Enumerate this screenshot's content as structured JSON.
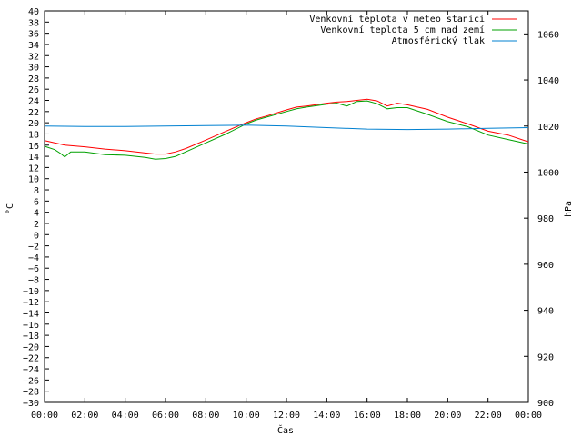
{
  "chart_data": {
    "type": "line",
    "xlabel": "Čas",
    "ylabel": "°C",
    "y2label": "hPa",
    "x_ticks": [
      "00:00",
      "02:00",
      "04:00",
      "06:00",
      "08:00",
      "10:00",
      "12:00",
      "14:00",
      "16:00",
      "18:00",
      "20:00",
      "22:00",
      "00:00"
    ],
    "x_range_hours": [
      0,
      24
    ],
    "ylim": [
      -30,
      40
    ],
    "y_ticks": [
      40,
      38,
      36,
      34,
      32,
      30,
      28,
      26,
      24,
      22,
      20,
      18,
      16,
      14,
      12,
      10,
      8,
      6,
      4,
      2,
      0,
      -2,
      -4,
      -6,
      -8,
      -10,
      -12,
      -14,
      -16,
      -18,
      -20,
      -22,
      -24,
      -26,
      -28,
      -30
    ],
    "y2lim": [
      900,
      1070
    ],
    "y2_ticks": [
      1060,
      1040,
      1020,
      1000,
      980,
      960,
      940,
      920,
      900
    ],
    "grid": false,
    "legend_position": "top-right",
    "series": [
      {
        "name": "Venkovní teplota v meteo stanici",
        "axis": "left",
        "color": "#ff0000",
        "x": [
          0,
          0.5,
          1,
          2,
          3,
          4,
          5,
          5.5,
          6,
          6.5,
          7,
          8,
          9,
          10,
          10.5,
          11,
          12,
          12.5,
          13,
          14,
          14.5,
          15,
          15.5,
          16,
          16.5,
          17,
          17.5,
          18,
          19,
          20,
          21,
          22,
          23,
          24
        ],
        "values": [
          16.8,
          16.4,
          16.0,
          15.7,
          15.3,
          15.0,
          14.6,
          14.4,
          14.4,
          14.8,
          15.4,
          16.9,
          18.5,
          20.0,
          20.7,
          21.2,
          22.3,
          22.8,
          23.0,
          23.5,
          23.7,
          23.8,
          24.0,
          24.2,
          23.9,
          23.0,
          23.5,
          23.2,
          22.4,
          21.0,
          19.8,
          18.5,
          17.8,
          16.6
        ]
      },
      {
        "name": "Venkovní teplota 5 cm nad zemí",
        "axis": "left",
        "color": "#00a000",
        "x": [
          0,
          0.5,
          0.8,
          1,
          1.3,
          2,
          3,
          4,
          5,
          5.5,
          6,
          6.5,
          7,
          8,
          9,
          10,
          10.5,
          11,
          12,
          12.5,
          13,
          14,
          14.5,
          15,
          15.5,
          16,
          16.5,
          17,
          17.5,
          18,
          19,
          20,
          21,
          22,
          23,
          24
        ],
        "values": [
          15.8,
          15.2,
          14.5,
          13.9,
          14.8,
          14.8,
          14.3,
          14.2,
          13.8,
          13.5,
          13.6,
          14.0,
          14.8,
          16.4,
          18.0,
          19.8,
          20.5,
          21.0,
          22.0,
          22.5,
          22.8,
          23.3,
          23.5,
          23.0,
          23.8,
          23.9,
          23.4,
          22.5,
          22.7,
          22.7,
          21.5,
          20.2,
          19.3,
          17.8,
          17.0,
          16.2
        ]
      },
      {
        "name": "Atmosférický tlak",
        "axis": "right",
        "color": "#0080d0",
        "x": [
          0,
          2,
          4,
          6,
          8,
          10,
          11,
          12,
          14,
          16,
          18,
          20,
          22,
          24
        ],
        "values": [
          1020,
          1019.8,
          1019.8,
          1020,
          1020.2,
          1020.4,
          1020.2,
          1020,
          1019.3,
          1018.7,
          1018.5,
          1018.7,
          1019,
          1019.3
        ]
      }
    ]
  }
}
